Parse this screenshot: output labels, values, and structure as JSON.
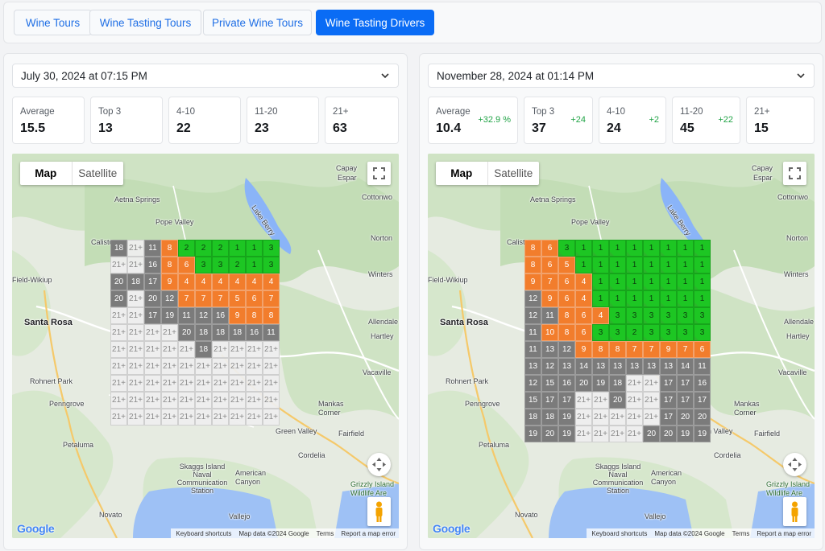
{
  "tabs": [
    {
      "label": "Wine Tours",
      "active": false
    },
    {
      "label": "Wine Tasting Tours",
      "active": false
    },
    {
      "label": "Private Wine Tours",
      "active": false
    },
    {
      "label": "Wine Tasting Drivers",
      "active": true
    }
  ],
  "colors": {
    "accent": "#0a6cf5",
    "green": "#1dc623",
    "orange": "#f27d2c",
    "grey": "#7b7b7b",
    "light": "#eeeeee",
    "delta": "#22a447"
  },
  "icons": {
    "dropdown": "chevron-down-icon",
    "fullscreen": "fullscreen-icon",
    "pan": "pan-arrows-icon",
    "streetview": "pegman-icon"
  },
  "map_controls": {
    "map_label": "Map",
    "satellite_label": "Satellite"
  },
  "map_footer": {
    "logo": "Google",
    "shortcuts": "Keyboard shortcuts",
    "map_data": "Map data ©2024 Google",
    "terms": "Terms",
    "report": "Report a map error"
  },
  "places": [
    "Capay",
    "Espar",
    "Aetna Springs",
    "Cottonwo",
    "Pope Valley",
    "Lake Berry",
    "Norton",
    "Calisto",
    "Winters",
    "Field-Wikiup",
    "Santa Rosa",
    "Allendale",
    "Hartley",
    "Vacaville",
    "Rohnert Park",
    "Penngrove",
    "Mankas Corner",
    "Green Valley",
    "Fairfield",
    "Petaluma",
    "Cordelia",
    "Skaggs Island Naval Communication Station",
    "American Canyon",
    "Grizzly Island Wildlife Are",
    "Novato",
    "Vallejo"
  ],
  "panels": [
    {
      "date": "July 30, 2024 at 07:15 PM",
      "stats": [
        {
          "label": "Average",
          "value": "15.5",
          "delta": ""
        },
        {
          "label": "Top 3",
          "value": "13",
          "delta": ""
        },
        {
          "label": "4-10",
          "value": "22",
          "delta": ""
        },
        {
          "label": "11-20",
          "value": "23",
          "delta": ""
        },
        {
          "label": "21+",
          "value": "63",
          "delta": ""
        }
      ],
      "grid": [
        [
          "18",
          "21+",
          "11",
          "8",
          "2",
          "2",
          "2",
          "1",
          "1",
          "3"
        ],
        [
          "21+",
          "21+",
          "16",
          "8",
          "6",
          "3",
          "3",
          "2",
          "1",
          "3"
        ],
        [
          "20",
          "18",
          "17",
          "9",
          "4",
          "4",
          "4",
          "4",
          "4",
          "4"
        ],
        [
          "20",
          "21+",
          "20",
          "12",
          "7",
          "7",
          "7",
          "5",
          "6",
          "7"
        ],
        [
          "21+",
          "21+",
          "17",
          "19",
          "11",
          "12",
          "16",
          "9",
          "8",
          "8"
        ],
        [
          "21+",
          "21+",
          "21+",
          "21+",
          "20",
          "18",
          "18",
          "18",
          "16",
          "11"
        ],
        [
          "21+",
          "21+",
          "21+",
          "21+",
          "21+",
          "18",
          "21+",
          "21+",
          "21+",
          "21+"
        ],
        [
          "21+",
          "21+",
          "21+",
          "21+",
          "21+",
          "21+",
          "21+",
          "21+",
          "21+",
          "21+"
        ],
        [
          "21+",
          "21+",
          "21+",
          "21+",
          "21+",
          "21+",
          "21+",
          "21+",
          "21+",
          "21+"
        ],
        [
          "21+",
          "21+",
          "21+",
          "21+",
          "21+",
          "21+",
          "21+",
          "21+",
          "21+",
          "21+"
        ],
        [
          "21+",
          "21+",
          "21+",
          "21+",
          "21+",
          "21+",
          "21+",
          "21+",
          "21+",
          "21+"
        ]
      ]
    },
    {
      "date": "November 28, 2024 at 01:14 PM",
      "stats": [
        {
          "label": "Average",
          "value": "10.4",
          "delta": "+32.9 %"
        },
        {
          "label": "Top 3",
          "value": "37",
          "delta": "+24"
        },
        {
          "label": "4-10",
          "value": "24",
          "delta": "+2"
        },
        {
          "label": "11-20",
          "value": "45",
          "delta": "+22"
        },
        {
          "label": "21+",
          "value": "15",
          "delta": ""
        }
      ],
      "grid": [
        [
          "8",
          "6",
          "3",
          "1",
          "1",
          "1",
          "1",
          "1",
          "1",
          "1",
          "1"
        ],
        [
          "8",
          "6",
          "5",
          "1",
          "1",
          "1",
          "1",
          "1",
          "1",
          "1",
          "1"
        ],
        [
          "9",
          "7",
          "6",
          "4",
          "1",
          "1",
          "1",
          "1",
          "1",
          "1",
          "1"
        ],
        [
          "12",
          "9",
          "6",
          "4",
          "1",
          "1",
          "1",
          "1",
          "1",
          "1",
          "1"
        ],
        [
          "12",
          "11",
          "8",
          "6",
          "4",
          "3",
          "3",
          "3",
          "3",
          "3",
          "3"
        ],
        [
          "11",
          "10",
          "8",
          "6",
          "3",
          "3",
          "2",
          "3",
          "3",
          "3",
          "3"
        ],
        [
          "11",
          "13",
          "12",
          "9",
          "8",
          "8",
          "7",
          "7",
          "9",
          "7",
          "6"
        ],
        [
          "13",
          "12",
          "13",
          "14",
          "13",
          "13",
          "13",
          "13",
          "13",
          "14",
          "11"
        ],
        [
          "12",
          "15",
          "16",
          "20",
          "19",
          "18",
          "21+",
          "21+",
          "17",
          "17",
          "16"
        ],
        [
          "15",
          "17",
          "17",
          "21+",
          "21+",
          "20",
          "21+",
          "21+",
          "17",
          "17",
          "17"
        ],
        [
          "18",
          "18",
          "19",
          "21+",
          "21+",
          "21+",
          "21+",
          "21+",
          "17",
          "20",
          "20"
        ],
        [
          "19",
          "20",
          "19",
          "21+",
          "21+",
          "21+",
          "21+",
          "20",
          "20",
          "19",
          "19"
        ]
      ]
    }
  ]
}
